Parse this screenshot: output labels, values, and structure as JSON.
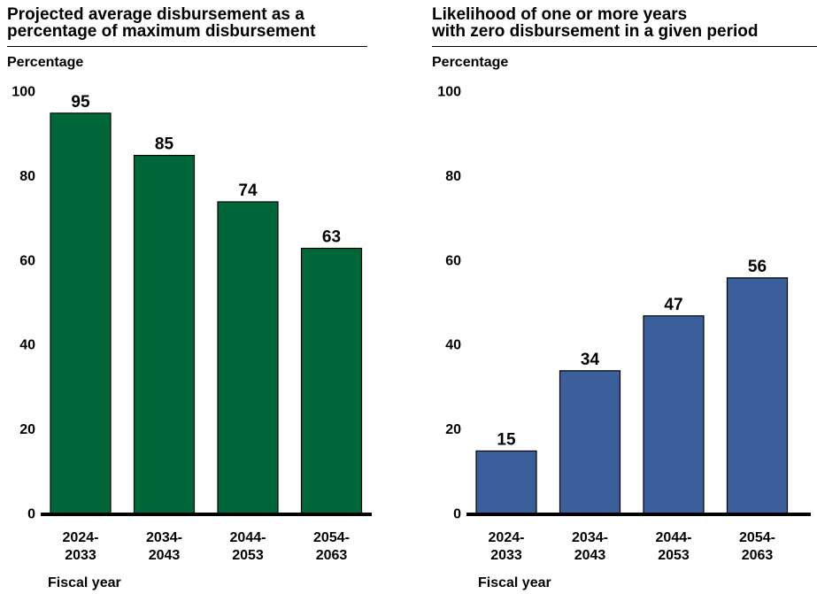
{
  "chart_data": [
    {
      "type": "bar",
      "title_lines": [
        "Projected average disbursement as a",
        "percentage of maximum disbursement"
      ],
      "ylabel": "Percentage",
      "xlabel": "Fiscal year",
      "categories": [
        [
          "2024-",
          "2033"
        ],
        [
          "2034-",
          "2043"
        ],
        [
          "2044-",
          "2053"
        ],
        [
          "2054-",
          "2063"
        ]
      ],
      "values": [
        95,
        85,
        74,
        63
      ],
      "data_labels": [
        "95",
        "85",
        "74",
        "63"
      ],
      "ylim": [
        0,
        100
      ],
      "yticks": [
        0,
        20,
        40,
        60,
        80,
        100
      ],
      "ytick_labels": [
        "0",
        "20",
        "40",
        "60",
        "80",
        "100"
      ],
      "color": "#006838",
      "grid": false
    },
    {
      "type": "bar",
      "title_lines": [
        "Likelihood of one or more years",
        "with zero disbursement in a given period"
      ],
      "ylabel": "Percentage",
      "xlabel": "Fiscal year",
      "categories": [
        [
          "2024-",
          "2033"
        ],
        [
          "2034-",
          "2043"
        ],
        [
          "2044-",
          "2053"
        ],
        [
          "2054-",
          "2063"
        ]
      ],
      "values": [
        15,
        34,
        47,
        56
      ],
      "data_labels": [
        "15",
        "34",
        "47",
        "56"
      ],
      "ylim": [
        0,
        100
      ],
      "yticks": [
        0,
        20,
        40,
        60,
        80,
        100
      ],
      "ytick_labels": [
        "0",
        "20",
        "40",
        "60",
        "80",
        "100"
      ],
      "color": "#3A5F9A",
      "grid": false
    }
  ]
}
